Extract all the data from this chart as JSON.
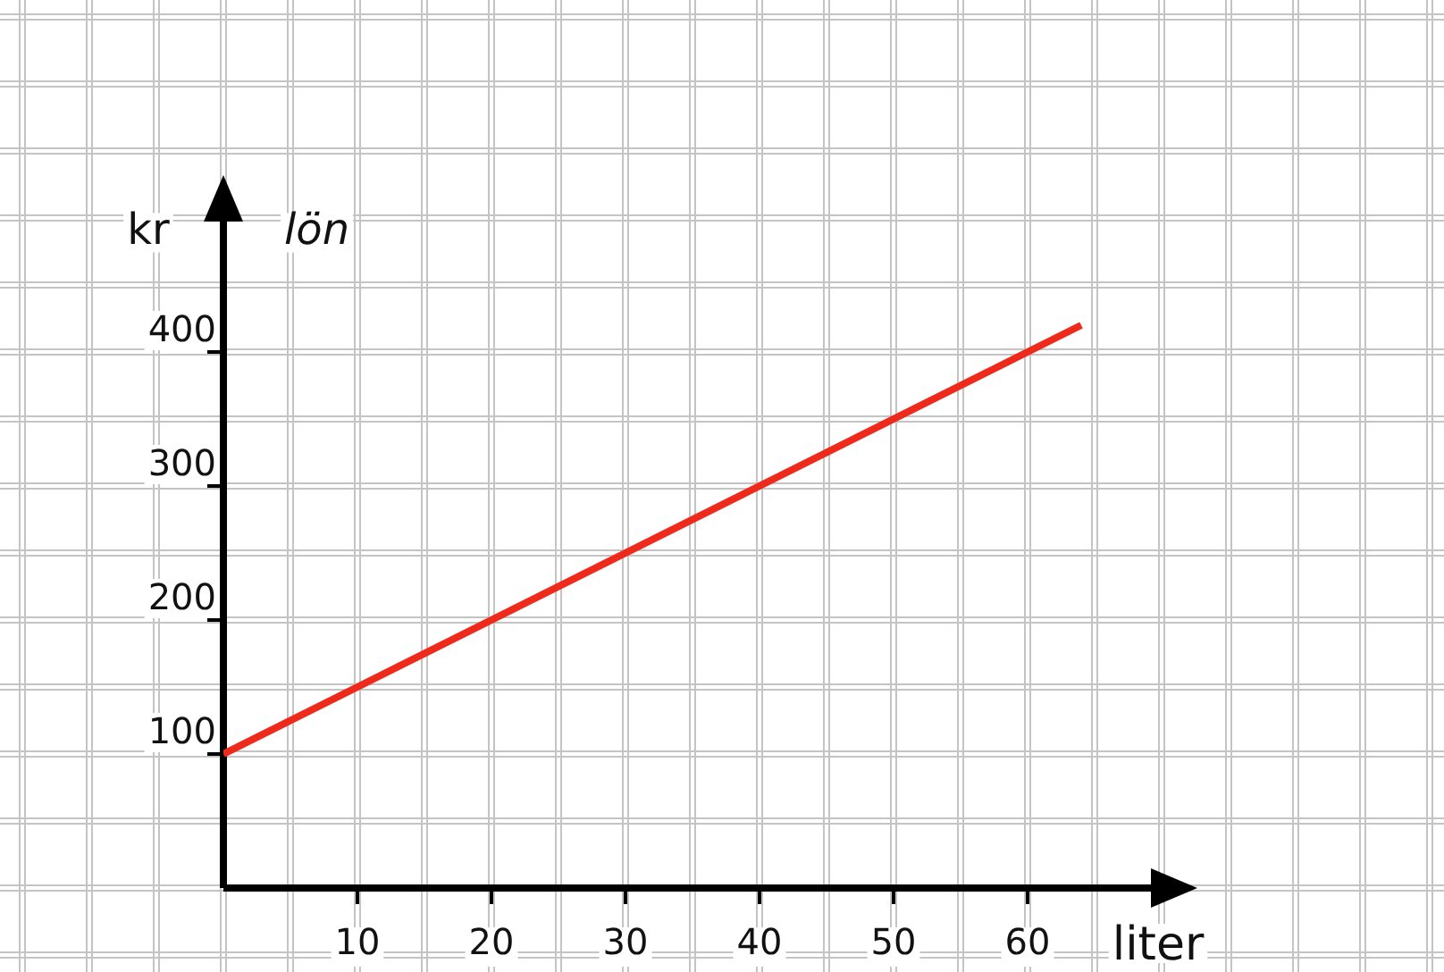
{
  "chart_data": {
    "type": "line",
    "xlabel": "liter",
    "ylabel": "kr",
    "x": [
      0,
      64
    ],
    "series": [
      {
        "name": "lön",
        "color": "#ee2a1b",
        "values": [
          100,
          420
        ]
      }
    ],
    "xlim": [
      0,
      70
    ],
    "ylim": [
      0,
      505
    ],
    "xticks": [
      10,
      20,
      30,
      40,
      50,
      60
    ],
    "yticks": [
      100,
      200,
      300,
      400
    ],
    "grid": true,
    "legend": false,
    "marker": "none",
    "line_style": "solid"
  }
}
